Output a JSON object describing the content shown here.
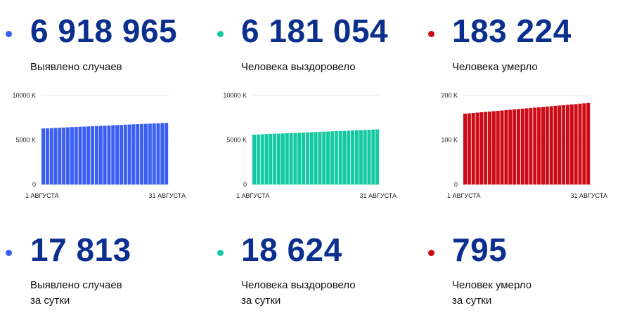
{
  "colors": {
    "blue": "#3a5ff5",
    "teal": "#13c9a1",
    "red": "#cc0b16",
    "number": "#0a2f8c"
  },
  "totals": [
    {
      "value": "6 918 965",
      "label": "Выявлено случаев",
      "color": "#3a5ff5"
    },
    {
      "value": "6 181 054",
      "label": "Человека выздоровело",
      "color": "#13c9a1"
    },
    {
      "value": "183 224",
      "label": "Человека умерло",
      "color": "#cc0b16"
    }
  ],
  "daily": [
    {
      "value": "17 813",
      "label_line1": "Выявлено случаев",
      "label_line2": "за сутки",
      "color": "#3a5ff5"
    },
    {
      "value": "18 624",
      "label_line1": "Человека выздоровело",
      "label_line2": "за сутки",
      "color": "#13c9a1"
    },
    {
      "value": "795",
      "label_line1": "Человек умерло",
      "label_line2": "за сутки",
      "color": "#cc0b16"
    }
  ],
  "chart_data": [
    {
      "type": "bar",
      "color": "#3a5ff5",
      "x_start_label": "1 АВГУСТА",
      "x_end_label": "31 АВГУСТА",
      "y_ticks": [
        0,
        5000,
        10000
      ],
      "y_tick_labels": [
        "0",
        "5000 K",
        "10000 K"
      ],
      "ylim": [
        0,
        10000
      ],
      "unit": "K",
      "start_value": 6290,
      "end_value": 6919,
      "num_bars": 31,
      "grid": true
    },
    {
      "type": "bar",
      "color": "#13c9a1",
      "x_start_label": "1 АВГУСТА",
      "x_end_label": "31 АВГУСТА",
      "y_ticks": [
        0,
        5000,
        10000
      ],
      "y_tick_labels": [
        "0",
        "5000 K",
        "10000 K"
      ],
      "ylim": [
        0,
        10000
      ],
      "unit": "K",
      "start_value": 5600,
      "end_value": 6181,
      "num_bars": 31,
      "grid": true
    },
    {
      "type": "bar",
      "color": "#cc0b16",
      "x_start_label": "1 АВГУСТА",
      "x_end_label": "31 АВГУСТА",
      "y_ticks": [
        0,
        100,
        200
      ],
      "y_tick_labels": [
        "0",
        "100 K",
        "200 K"
      ],
      "ylim": [
        0,
        200
      ],
      "unit": "K",
      "start_value": 159,
      "end_value": 183,
      "num_bars": 31,
      "grid": true
    }
  ]
}
